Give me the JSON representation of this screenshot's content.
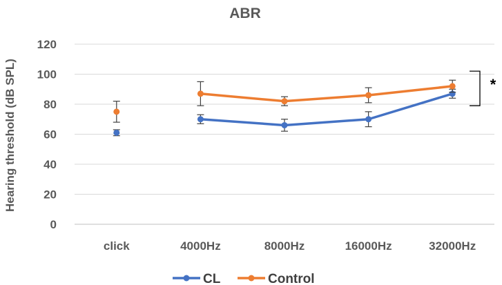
{
  "chart_data": {
    "type": "line",
    "title": "ABR",
    "ylabel": "Hearing threshold (dB SPL)",
    "xlabel": "",
    "categories": [
      "click",
      "4000Hz",
      "8000Hz",
      "16000Hz",
      "32000Hz"
    ],
    "ylim": [
      0,
      120
    ],
    "yticks": [
      0,
      20,
      40,
      60,
      80,
      100,
      120
    ],
    "grid": true,
    "legend_position": "bottom",
    "series": [
      {
        "name": "CL",
        "color": "#4472C4",
        "values": [
          61,
          70,
          66,
          70,
          87
        ],
        "error": [
          2,
          3,
          4,
          5,
          3
        ],
        "connect_from_index": 1
      },
      {
        "name": "Control",
        "color": "#ED7D31",
        "values": [
          75,
          87,
          82,
          86,
          92
        ],
        "error": [
          7,
          8,
          3,
          5,
          4
        ],
        "connect_from_index": 1
      }
    ],
    "annotation": {
      "text": "*",
      "range": [
        79,
        102
      ]
    }
  }
}
